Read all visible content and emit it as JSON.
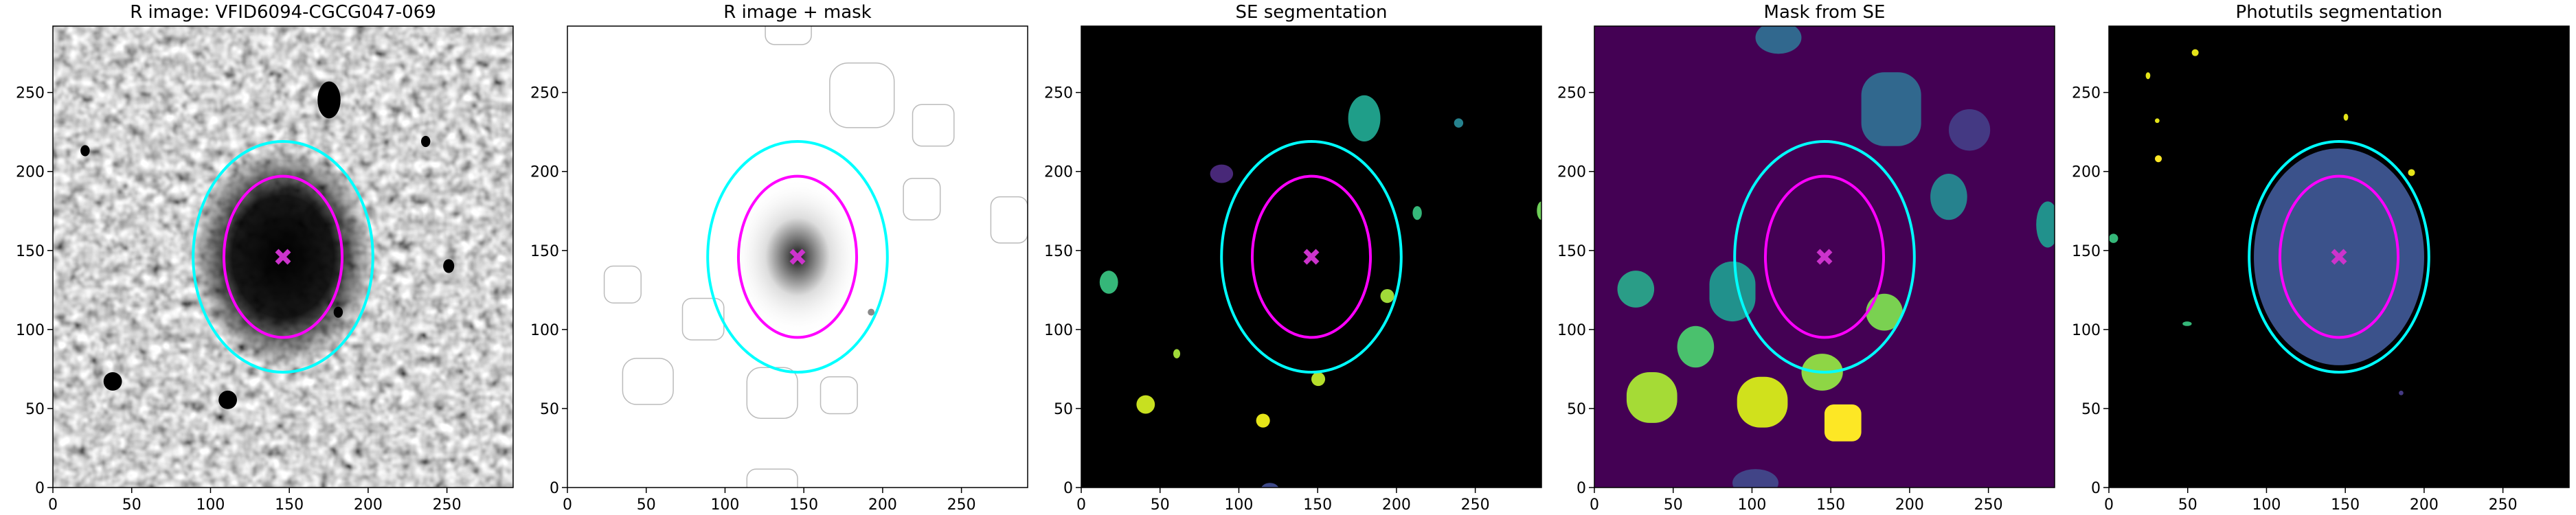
{
  "chart_data": [
    {
      "type": "image",
      "title": "R image: VFID6094-CGCG047-069",
      "xlim": [
        0,
        292
      ],
      "ylim": [
        0,
        292
      ],
      "xticks": [
        0,
        50,
        100,
        150,
        200,
        250
      ],
      "yticks": [
        0,
        50,
        100,
        150,
        200,
        250
      ],
      "ellipses": [
        {
          "x": 146,
          "y": 146,
          "width": 114,
          "height": 146,
          "color": "#00ffff"
        },
        {
          "x": 146,
          "y": 146,
          "width": 75,
          "height": 102,
          "color": "#ff00ff"
        }
      ],
      "marker": {
        "x": 146,
        "y": 146,
        "color": "#cc33cc"
      }
    },
    {
      "type": "image",
      "title": "R image + mask",
      "xlim": [
        0,
        292
      ],
      "ylim": [
        0,
        292
      ],
      "xticks": [
        0,
        50,
        100,
        150,
        200,
        250
      ],
      "yticks": [
        0,
        50,
        100,
        150,
        200,
        250
      ],
      "ellipses": [
        {
          "x": 146,
          "y": 146,
          "width": 114,
          "height": 146,
          "color": "#00ffff"
        },
        {
          "x": 146,
          "y": 146,
          "width": 75,
          "height": 102,
          "color": "#ff00ff"
        }
      ],
      "marker": {
        "x": 146,
        "y": 146,
        "color": "#cc33cc"
      }
    },
    {
      "type": "image",
      "title": "SE segmentation",
      "xlim": [
        0,
        292
      ],
      "ylim": [
        0,
        292
      ],
      "xticks": [
        0,
        50,
        100,
        150,
        200,
        250
      ],
      "yticks": [
        0,
        50,
        100,
        150,
        200,
        250
      ],
      "ellipses": [
        {
          "x": 146,
          "y": 146,
          "width": 114,
          "height": 146,
          "color": "#00ffff"
        },
        {
          "x": 146,
          "y": 146,
          "width": 75,
          "height": 102,
          "color": "#ff00ff"
        }
      ],
      "marker": {
        "x": 146,
        "y": 146,
        "color": "#cc33cc"
      }
    },
    {
      "type": "image",
      "title": "Mask from SE",
      "xlim": [
        0,
        292
      ],
      "ylim": [
        0,
        292
      ],
      "xticks": [
        0,
        50,
        100,
        150,
        200,
        250
      ],
      "yticks": [
        0,
        50,
        100,
        150,
        200,
        250
      ],
      "ellipses": [
        {
          "x": 146,
          "y": 146,
          "width": 114,
          "height": 146,
          "color": "#00ffff"
        },
        {
          "x": 146,
          "y": 146,
          "width": 75,
          "height": 102,
          "color": "#ff00ff"
        }
      ],
      "marker": {
        "x": 146,
        "y": 146,
        "color": "#cc33cc"
      }
    },
    {
      "type": "image",
      "title": "Photutils segmentation",
      "xlim": [
        0,
        292
      ],
      "ylim": [
        0,
        292
      ],
      "xticks": [
        0,
        50,
        100,
        150,
        200,
        250
      ],
      "yticks": [
        0,
        50,
        100,
        150,
        200,
        250
      ],
      "ellipses": [
        {
          "x": 146,
          "y": 146,
          "width": 114,
          "height": 146,
          "color": "#00ffff"
        },
        {
          "x": 146,
          "y": 146,
          "width": 75,
          "height": 102,
          "color": "#ff00ff"
        }
      ],
      "marker": {
        "x": 146,
        "y": 146,
        "color": "#cc33cc"
      }
    }
  ]
}
